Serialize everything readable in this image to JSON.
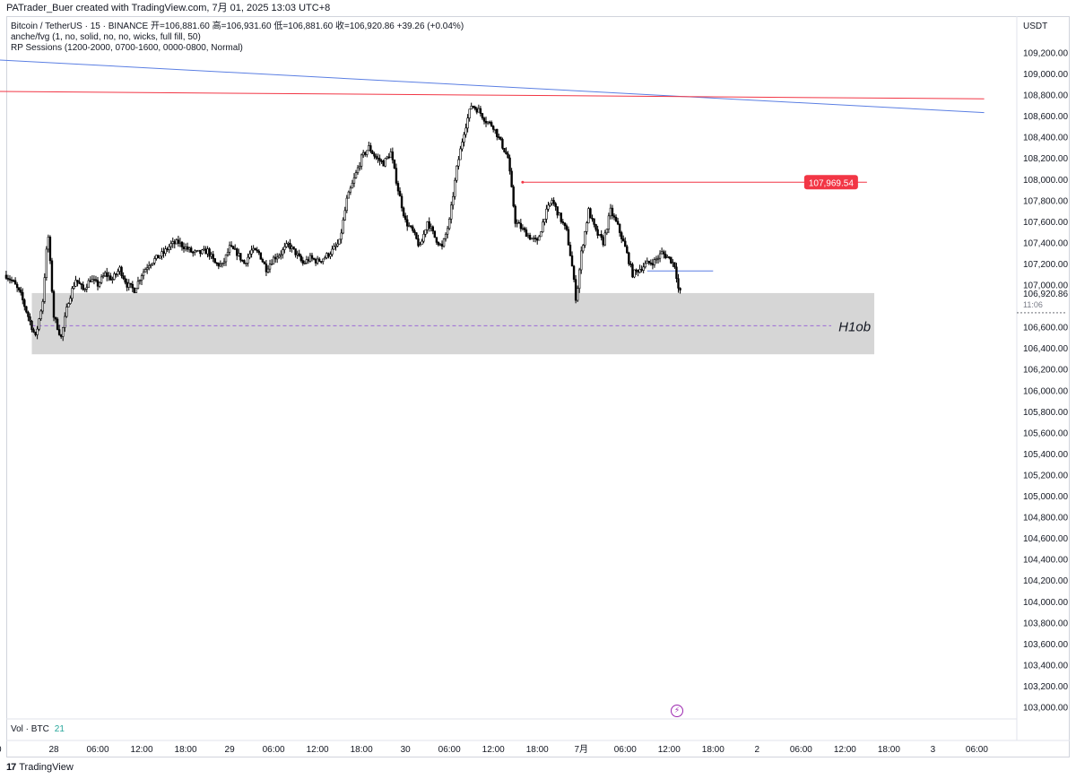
{
  "header": {
    "creator_line": "PATrader_Buer created with TradingView.com, 7月 01, 2025 13:03 UTC+8"
  },
  "legend": {
    "symbol_line": "Bitcoin / TetherUS · 15 · BINANCE  开=106,881.60  高=106,931.60  低=106,881.60  收=106,920.86  +39.26 (+0.04%)",
    "indicator_1": "anche/fvg (1, no, solid, no, no, wicks, full fill, 50)",
    "indicator_2": "RP Sessions (1200-2000, 0700-1600, 0000-0800, Normal)"
  },
  "price_scale_currency": "USDT",
  "volume_pane": {
    "label": "Vol · BTC",
    "value": "21"
  },
  "footer": {
    "brand": "TradingView"
  },
  "chart_data": {
    "type": "candlestick",
    "symbol": "BTCUSDT",
    "timeframe": "15",
    "exchange": "BINANCE",
    "ohlc_last": {
      "open": 106881.6,
      "high": 106931.6,
      "low": 106881.6,
      "close": 106920.86,
      "change": 39.26,
      "change_pct": 0.04
    },
    "y_ticks": [
      109200,
      109000,
      108800,
      108600,
      108400,
      108200,
      108000,
      107800,
      107600,
      107400,
      107200,
      107000,
      106600,
      106400,
      106200,
      106000,
      105800,
      105600,
      105400,
      105200,
      105000,
      104800,
      104600,
      104400,
      104200,
      104000,
      103800,
      103600,
      103400,
      103200,
      103000
    ],
    "ylim": [
      102900,
      109400
    ],
    "x_ticks": [
      {
        "label": ":00",
        "t": -8
      },
      {
        "label": "28",
        "t": 0
      },
      {
        "label": "06:00",
        "t": 6
      },
      {
        "label": "12:00",
        "t": 12
      },
      {
        "label": "18:00",
        "t": 18
      },
      {
        "label": "29",
        "t": 24
      },
      {
        "label": "06:00",
        "t": 30
      },
      {
        "label": "12:00",
        "t": 36
      },
      {
        "label": "18:00",
        "t": 42
      },
      {
        "label": "30",
        "t": 48
      },
      {
        "label": "06:00",
        "t": 54
      },
      {
        "label": "12:00",
        "t": 60
      },
      {
        "label": "18:00",
        "t": 66
      },
      {
        "label": "7月",
        "t": 72
      },
      {
        "label": "06:00",
        "t": 78
      },
      {
        "label": "12:00",
        "t": 84
      },
      {
        "label": "18:00",
        "t": 90
      },
      {
        "label": "2",
        "t": 96
      },
      {
        "label": "06:00",
        "t": 102
      },
      {
        "label": "12:00",
        "t": 108
      },
      {
        "label": "18:00",
        "t": 114
      },
      {
        "label": "3",
        "t": 120
      },
      {
        "label": "06:00",
        "t": 126
      }
    ],
    "price_path": [
      [
        -6.5,
        107090
      ],
      [
        -5.5,
        107020
      ],
      [
        -4.5,
        106900
      ],
      [
        -3.5,
        106700
      ],
      [
        -2.5,
        106500
      ],
      [
        -1.5,
        106850
      ],
      [
        -0.8,
        107500
      ],
      [
        0.0,
        106700
      ],
      [
        1.0,
        106500
      ],
      [
        2.0,
        106850
      ],
      [
        3.0,
        107050
      ],
      [
        4.0,
        106950
      ],
      [
        5.0,
        107050
      ],
      [
        6.0,
        107000
      ],
      [
        7.0,
        107100
      ],
      [
        8.0,
        107050
      ],
      [
        9.0,
        107150
      ],
      [
        10.0,
        107000
      ],
      [
        11.0,
        106950
      ],
      [
        12.0,
        107100
      ],
      [
        13.0,
        107200
      ],
      [
        14.0,
        107250
      ],
      [
        15.0,
        107300
      ],
      [
        16.0,
        107380
      ],
      [
        17.0,
        107400
      ],
      [
        18.0,
        107350
      ],
      [
        19.0,
        107300
      ],
      [
        20.0,
        107300
      ],
      [
        21.0,
        107320
      ],
      [
        22.0,
        107200
      ],
      [
        23.0,
        107180
      ],
      [
        24.0,
        107350
      ],
      [
        25.0,
        107300
      ],
      [
        26.0,
        107200
      ],
      [
        27.0,
        107320
      ],
      [
        28.0,
        107300
      ],
      [
        29.0,
        107150
      ],
      [
        30.0,
        107250
      ],
      [
        31.0,
        107300
      ],
      [
        32.0,
        107380
      ],
      [
        33.0,
        107300
      ],
      [
        34.0,
        107200
      ],
      [
        35.0,
        107250
      ],
      [
        36.0,
        107220
      ],
      [
        37.0,
        107260
      ],
      [
        38.0,
        107320
      ],
      [
        39.0,
        107400
      ],
      [
        40.0,
        107800
      ],
      [
        41.0,
        108000
      ],
      [
        42.0,
        108200
      ],
      [
        43.0,
        108300
      ],
      [
        44.0,
        108200
      ],
      [
        45.0,
        108150
      ],
      [
        46.0,
        108250
      ],
      [
        47.0,
        107900
      ],
      [
        48.0,
        107600
      ],
      [
        49.0,
        107500
      ],
      [
        50.0,
        107350
      ],
      [
        51.0,
        107600
      ],
      [
        52.0,
        107450
      ],
      [
        53.0,
        107350
      ],
      [
        54.0,
        107600
      ],
      [
        55.0,
        108100
      ],
      [
        56.0,
        108450
      ],
      [
        57.0,
        108700
      ],
      [
        58.0,
        108650
      ],
      [
        59.0,
        108550
      ],
      [
        60.0,
        108500
      ],
      [
        61.0,
        108350
      ],
      [
        62.0,
        108200
      ],
      [
        63.0,
        107600
      ],
      [
        64.0,
        107520
      ],
      [
        65.0,
        107450
      ],
      [
        66.0,
        107400
      ],
      [
        67.0,
        107650
      ],
      [
        68.0,
        107800
      ],
      [
        69.0,
        107650
      ],
      [
        70.0,
        107500
      ],
      [
        70.7,
        107200
      ],
      [
        71.3,
        106850
      ],
      [
        72.0,
        107300
      ],
      [
        73.0,
        107700
      ],
      [
        74.0,
        107500
      ],
      [
        75.0,
        107400
      ],
      [
        76.0,
        107700
      ],
      [
        77.0,
        107550
      ],
      [
        78.0,
        107350
      ],
      [
        79.0,
        107100
      ],
      [
        80.0,
        107150
      ],
      [
        81.0,
        107200
      ],
      [
        82.0,
        107220
      ],
      [
        83.0,
        107300
      ],
      [
        84.0,
        107250
      ],
      [
        84.8,
        107180
      ],
      [
        85.3,
        106940
      ],
      [
        85.6,
        106920
      ]
    ],
    "lines": [
      {
        "name": "trendline",
        "color": "#5b7fe3",
        "from": [
          -8,
          109130
        ],
        "to": [
          127,
          108630
        ]
      },
      {
        "name": "resistance",
        "color": "#f23645",
        "from": [
          -8,
          108830
        ],
        "to": [
          127,
          108760
        ]
      },
      {
        "name": "level",
        "color": "#f23645",
        "from": [
          64,
          107970
        ],
        "to": [
          111,
          107970
        ],
        "label": "107,969.54"
      },
      {
        "name": "short-level",
        "color": "#5b7fe3",
        "from": [
          81,
          107130
        ],
        "to": [
          90,
          107130
        ]
      }
    ],
    "zones": [
      {
        "label": "H1ob",
        "color": "#d6d6d6",
        "x_from": -3,
        "x_to": 112,
        "y_from": 106340,
        "y_to": 106920,
        "mid": 106610
      }
    ],
    "last_price": {
      "value": "106,920.86",
      "countdown": "11:06"
    }
  }
}
